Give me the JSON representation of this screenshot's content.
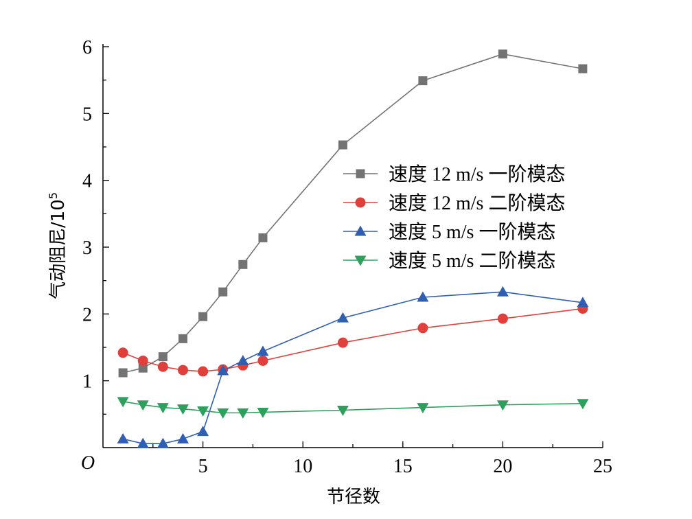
{
  "chart_data": {
    "type": "line",
    "title": "",
    "xlabel": "节径数",
    "ylabel": "气动阻尼/10",
    "ylabel_superscript": "5",
    "origin_label": "O",
    "xlim": [
      0,
      25
    ],
    "ylim": [
      0,
      6
    ],
    "x_ticks": [
      5,
      10,
      15,
      20,
      25
    ],
    "x_tick_labels": [
      "5",
      "10",
      "15",
      "20",
      "25"
    ],
    "y_ticks": [
      1,
      2,
      3,
      4,
      5,
      6
    ],
    "y_tick_labels": [
      "1",
      "2",
      "3",
      "4",
      "5",
      "6"
    ],
    "grid": false,
    "legend_position": "center-right",
    "series": [
      {
        "name": "速度 12 m/s 一阶模态",
        "marker": "square",
        "color": "#737373",
        "x": [
          1,
          2,
          3,
          4,
          5,
          6,
          7,
          8,
          12,
          16,
          20,
          24
        ],
        "y": [
          1.12,
          1.19,
          1.36,
          1.63,
          1.96,
          2.33,
          2.74,
          3.14,
          4.53,
          5.49,
          5.89,
          5.67
        ]
      },
      {
        "name": "速度 12 m/s 二阶模态",
        "marker": "circle",
        "color": "#e0403c",
        "x": [
          1,
          2,
          3,
          4,
          5,
          6,
          7,
          8,
          12,
          16,
          20,
          24
        ],
        "y": [
          1.42,
          1.3,
          1.21,
          1.16,
          1.14,
          1.17,
          1.23,
          1.3,
          1.57,
          1.79,
          1.93,
          2.08
        ]
      },
      {
        "name": "速度 5 m/s 一阶模态",
        "marker": "triangle-up",
        "color": "#2f5fb3",
        "x": [
          1,
          2,
          3,
          4,
          5,
          6,
          7,
          8,
          12,
          16,
          20,
          24
        ],
        "y": [
          0.13,
          0.06,
          0.06,
          0.13,
          0.24,
          1.15,
          1.3,
          1.44,
          1.94,
          2.25,
          2.33,
          2.17
        ]
      },
      {
        "name": "速度 5 m/s 二阶模态",
        "marker": "triangle-down",
        "color": "#2ea05e",
        "x": [
          1,
          2,
          3,
          4,
          5,
          6,
          7,
          8,
          12,
          16,
          20,
          24
        ],
        "y": [
          0.69,
          0.64,
          0.6,
          0.58,
          0.55,
          0.52,
          0.52,
          0.53,
          0.56,
          0.6,
          0.64,
          0.66
        ]
      }
    ]
  }
}
